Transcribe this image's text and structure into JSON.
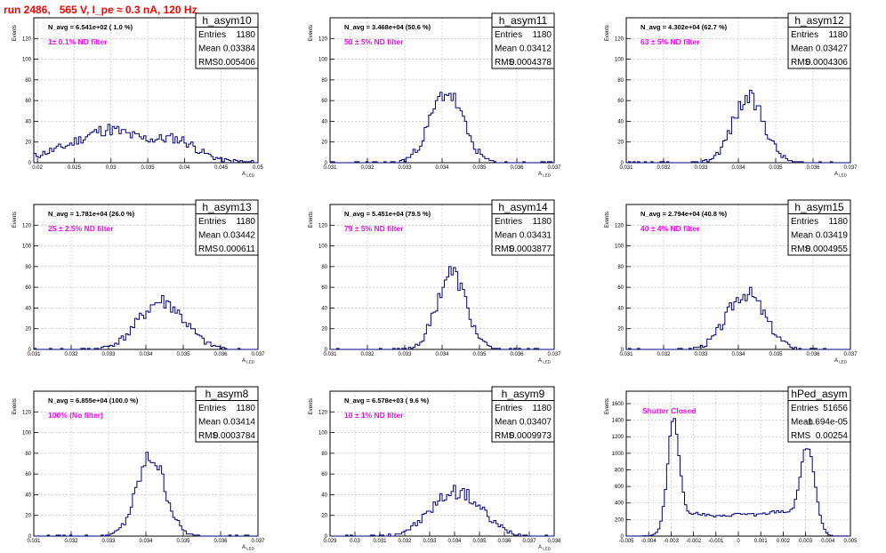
{
  "page_title": "run 2486,   565 V, I_pe ≈ 0.3 nA, 120 Hz",
  "colors": {
    "title": "#ff0000",
    "histogram": "#000080",
    "annotation": "#ff00ff"
  },
  "stats_labels": {
    "entries": "Entries",
    "mean": "Mean",
    "rms": "RMS"
  },
  "chart_data": [
    {
      "type": "histogram",
      "name": "h_asym10",
      "navg": "N_avg = 6.541e+02 ( 1.0 %)",
      "filter": "1± 0.1% ND filter",
      "entries": "1180",
      "mean": "0.03384",
      "rms": "0.005406",
      "ylabel": "Events",
      "xlabel": "A_LED",
      "xlim": [
        0.0195,
        0.05
      ],
      "ylim": [
        0,
        140
      ],
      "xticks": [
        0.02,
        0.025,
        0.03,
        0.035,
        0.04,
        0.045,
        0.05
      ],
      "xtick_labels": [
        "0.02",
        "0.025",
        "0.03",
        "0.035",
        "0.04",
        "0.045",
        "0.05"
      ],
      "yticks": [
        0,
        20,
        40,
        60,
        80,
        100,
        120,
        140
      ],
      "ytick_labels": [
        "0",
        "20",
        "40",
        "60",
        "80",
        "100",
        "120",
        ""
      ],
      "peaks": [
        [
          0.0255,
          0.004,
          13
        ],
        [
          0.0295,
          0.0025,
          13
        ],
        [
          0.0345,
          0.004,
          14
        ],
        [
          0.0395,
          0.0025,
          12
        ],
        [
          0.032,
          0.009,
          5
        ]
      ],
      "seed": 11
    },
    {
      "type": "histogram",
      "name": "h_asym11",
      "navg": "N_avg = 3.468e+04 (50.6 %)",
      "filter": "50 ± 5% ND filter",
      "entries": "1180",
      "mean": "0.03412",
      "rms": "0.0004378",
      "ylabel": "Events",
      "xlabel": "A_LED",
      "xlim": [
        0.031,
        0.037
      ],
      "ylim": [
        0,
        140
      ],
      "xticks": [
        0.031,
        0.032,
        0.033,
        0.034,
        0.035,
        0.036,
        0.037
      ],
      "xtick_labels": [
        "0.031",
        "0.032",
        "0.033",
        "0.034",
        "0.035",
        "0.036",
        "0.037"
      ],
      "yticks": [
        0,
        20,
        40,
        60,
        80,
        100,
        120,
        140
      ],
      "ytick_labels": [
        "0",
        "20",
        "40",
        "60",
        "80",
        "100",
        "120",
        ""
      ],
      "peaks": [
        [
          0.03412,
          0.00044,
          68
        ]
      ],
      "seed": 23
    },
    {
      "type": "histogram",
      "name": "h_asym12",
      "navg": "N_avg = 4.302e+04 (62.7 %)",
      "filter": "63 ± 5% ND filter",
      "entries": "1180",
      "mean": "0.03427",
      "rms": "0.0004306",
      "ylabel": "Events",
      "xlabel": "A_LED",
      "xlim": [
        0.031,
        0.037
      ],
      "ylim": [
        0,
        140
      ],
      "xticks": [
        0.031,
        0.032,
        0.033,
        0.034,
        0.035,
        0.036,
        0.037
      ],
      "xtick_labels": [
        "0.031",
        "0.032",
        "0.033",
        "0.034",
        "0.035",
        "0.036",
        "0.037"
      ],
      "yticks": [
        0,
        20,
        40,
        60,
        80,
        100,
        120,
        140
      ],
      "ytick_labels": [
        "0",
        "20",
        "40",
        "60",
        "80",
        "100",
        "120",
        ""
      ],
      "peaks": [
        [
          0.03427,
          0.00043,
          62
        ]
      ],
      "seed": 37
    },
    {
      "type": "histogram",
      "name": "h_asym13",
      "navg": "N_avg = 1.781e+04 (26.0 %)",
      "filter": "25 ± 2.5% ND filter",
      "entries": "1180",
      "mean": "0.03442",
      "rms": "0.000611",
      "ylabel": "Events",
      "xlabel": "A_LED",
      "xlim": [
        0.031,
        0.037
      ],
      "ylim": [
        0,
        140
      ],
      "xticks": [
        0.031,
        0.032,
        0.033,
        0.034,
        0.035,
        0.036,
        0.037
      ],
      "xtick_labels": [
        "0.031",
        "0.032",
        "0.033",
        "0.034",
        "0.035",
        "0.036",
        "0.037"
      ],
      "yticks": [
        0,
        20,
        40,
        60,
        80,
        100,
        120,
        140
      ],
      "ytick_labels": [
        "0",
        "20",
        "40",
        "60",
        "80",
        "100",
        "120",
        ""
      ],
      "peaks": [
        [
          0.03442,
          0.00061,
          46
        ]
      ],
      "seed": 41
    },
    {
      "type": "histogram",
      "name": "h_asym14",
      "navg": "N_avg = 5.451e+04 (79.5 %)",
      "filter": "79 ± 5% ND filter",
      "entries": "1180",
      "mean": "0.03431",
      "rms": "0.0003877",
      "ylabel": "Events",
      "xlabel": "A_LED",
      "xlim": [
        0.031,
        0.037
      ],
      "ylim": [
        0,
        140
      ],
      "xticks": [
        0.031,
        0.032,
        0.033,
        0.034,
        0.035,
        0.036,
        0.037
      ],
      "xtick_labels": [
        "0.031",
        "0.032",
        "0.033",
        "0.034",
        "0.035",
        "0.036",
        "0.037"
      ],
      "yticks": [
        0,
        20,
        40,
        60,
        80,
        100,
        120,
        140
      ],
      "ytick_labels": [
        "0",
        "20",
        "40",
        "60",
        "80",
        "100",
        "120",
        ""
      ],
      "peaks": [
        [
          0.03425,
          0.00039,
          74
        ]
      ],
      "seed": 53
    },
    {
      "type": "histogram",
      "name": "h_asym15",
      "navg": "N_avg = 2.794e+04 (40.8 %)",
      "filter": "40 ± 4% ND filter",
      "entries": "1180",
      "mean": "0.03419",
      "rms": "0.0004955",
      "ylabel": "Events",
      "xlabel": "A_LED",
      "xlim": [
        0.031,
        0.037
      ],
      "ylim": [
        0,
        140
      ],
      "xticks": [
        0.031,
        0.032,
        0.033,
        0.034,
        0.035,
        0.036,
        0.037
      ],
      "xtick_labels": [
        "0.031",
        "0.032",
        "0.033",
        "0.034",
        "0.035",
        "0.036",
        "0.037"
      ],
      "yticks": [
        0,
        20,
        40,
        60,
        80,
        100,
        120,
        140
      ],
      "ytick_labels": [
        "0",
        "20",
        "40",
        "60",
        "80",
        "100",
        "120",
        ""
      ],
      "peaks": [
        [
          0.0342,
          0.0005,
          55
        ]
      ],
      "seed": 67
    },
    {
      "type": "histogram",
      "name": "h_asym8",
      "navg": "N_avg = 6.855e+04 (100.0 %)",
      "filter": "100% (No filter)",
      "entries": "1180",
      "mean": "0.03414",
      "rms": "0.0003784",
      "ylabel": "Events",
      "xlabel": "A_LED",
      "xlim": [
        0.031,
        0.037
      ],
      "ylim": [
        0,
        140
      ],
      "xticks": [
        0.031,
        0.032,
        0.033,
        0.034,
        0.035,
        0.036,
        0.037
      ],
      "xtick_labels": [
        "0.031",
        "0.032",
        "0.033",
        "0.034",
        "0.035",
        "0.036",
        "0.037"
      ],
      "yticks": [
        0,
        20,
        40,
        60,
        80,
        100,
        120,
        140
      ],
      "ytick_labels": [
        "0",
        "20",
        "40",
        "60",
        "80",
        "100",
        "120",
        ""
      ],
      "peaks": [
        [
          0.03414,
          0.00038,
          76
        ]
      ],
      "seed": 79
    },
    {
      "type": "histogram",
      "name": "h_asym9",
      "navg": "N_avg = 6.578e+03 ( 9.6 %)",
      "filter": "10 ± 1% ND filter",
      "entries": "1180",
      "mean": "0.03407",
      "rms": "0.0009973",
      "ylabel": "Events",
      "xlabel": "A_LED",
      "xlim": [
        0.029,
        0.038
      ],
      "ylim": [
        0,
        140
      ],
      "xticks": [
        0.029,
        0.03,
        0.031,
        0.032,
        0.033,
        0.034,
        0.035,
        0.036,
        0.037,
        0.038
      ],
      "xtick_labels": [
        "0.029",
        "0.03",
        "0.031",
        "0.032",
        "0.033",
        "0.034",
        "0.035",
        "0.036",
        "0.037",
        "0.038"
      ],
      "yticks": [
        0,
        20,
        40,
        60,
        80,
        100,
        120,
        140
      ],
      "ytick_labels": [
        "0",
        "20",
        "40",
        "60",
        "80",
        "100",
        "120",
        ""
      ],
      "peaks": [
        [
          0.03407,
          0.001,
          43
        ]
      ],
      "seed": 97
    },
    {
      "type": "histogram",
      "name": "hPed_asym",
      "navg": "",
      "filter": "Shutter Closed",
      "entries": "51656",
      "mean": "-1.694e-05",
      "rms": "0.00254",
      "ylabel": "Events",
      "xlabel": "",
      "xlim": [
        -0.005,
        0.005
      ],
      "ylim": [
        0,
        1750
      ],
      "xticks": [
        -0.005,
        -0.004,
        -0.003,
        -0.002,
        -0.001,
        0,
        0.001,
        0.002,
        0.003,
        0.004,
        0.005
      ],
      "xtick_labels": [
        "-0.005",
        "-0.004",
        "-0.003",
        "-0.002",
        "-0.001",
        "0",
        "0.001",
        "0.002",
        "0.003",
        "0.004",
        "0.005"
      ],
      "yticks": [
        0,
        200,
        400,
        600,
        800,
        1000,
        1200,
        1400,
        1600
      ],
      "ytick_labels": [
        "0",
        "200",
        "400",
        "600",
        "800",
        "1000",
        "1200",
        "1400",
        "1600"
      ],
      "peaks": [
        [
          -0.0029,
          0.00026,
          1300
        ],
        [
          0.0031,
          0.00032,
          1000
        ],
        [
          0.0001,
          0.0012,
          260
        ],
        [
          -0.0021,
          0.0007,
          220
        ],
        [
          0.0021,
          0.0007,
          220
        ]
      ],
      "seed": 113
    }
  ]
}
